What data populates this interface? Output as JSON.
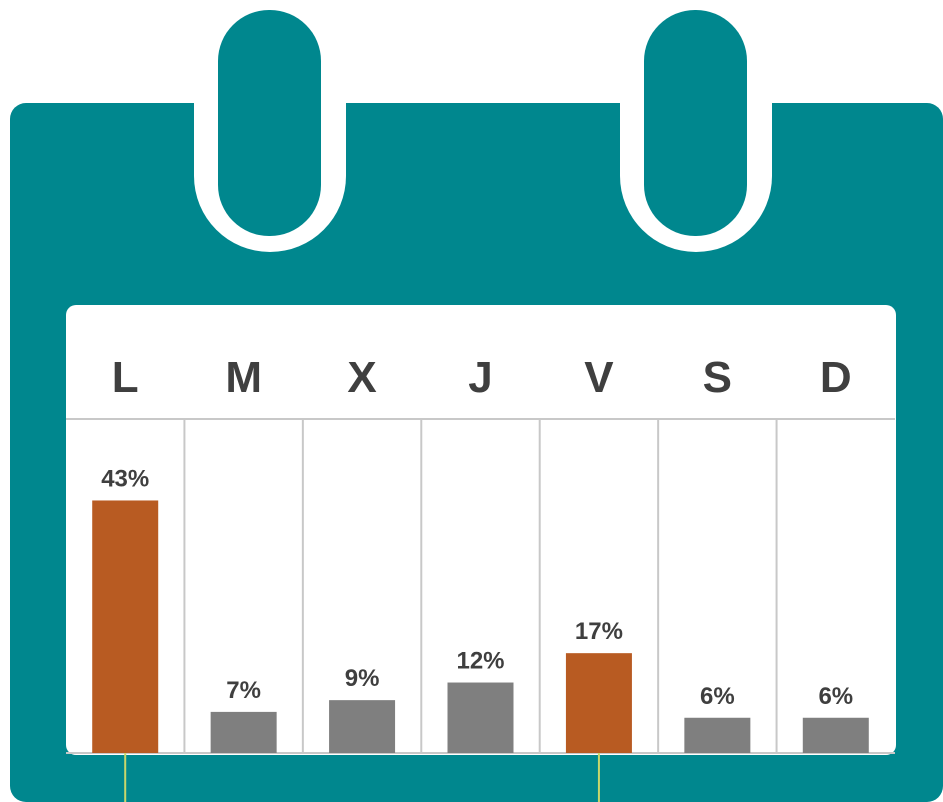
{
  "colors": {
    "calendar": "#00878E",
    "highlight": "#B85B22",
    "default_bar": "#7F7F7F",
    "grid": "#C8C8C8",
    "leader": "#C9D76B",
    "panel": "#FFFFFF"
  },
  "icons": [
    "calendar-ring-icon"
  ],
  "chart_data": {
    "type": "bar",
    "categories": [
      "L",
      "M",
      "X",
      "J",
      "V",
      "S",
      "D"
    ],
    "values": [
      43,
      7,
      9,
      12,
      17,
      6,
      6
    ],
    "value_labels": [
      "43%",
      "7%",
      "9%",
      "12%",
      "17%",
      "6%",
      "6%"
    ],
    "highlighted": [
      "L",
      "V"
    ],
    "title": "",
    "xlabel": "",
    "ylabel": "",
    "ylim": [
      0,
      55
    ],
    "grid": "vertical separators",
    "legend": "none"
  }
}
